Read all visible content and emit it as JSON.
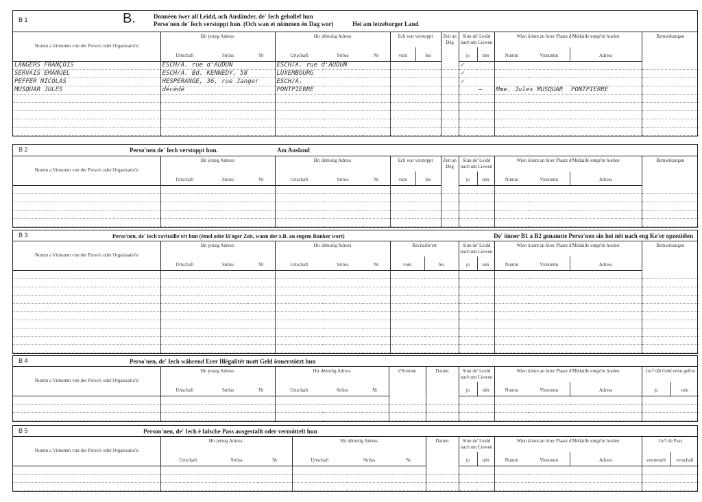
{
  "sections": [
    {
      "id": "B 1",
      "big_letter": "B.",
      "title": "Donnéen iwer all Leidd, och Ausländer, de' Iech gehollef hun",
      "title_line2": "Perso'nen de' Iech verstoppt hun. (Och wan et nömmen én Dag wor)",
      "extra": "Hei am letzeburger Land",
      "groups": [
        {
          "label": "Numm a Virnumm vun der Perso'n oder Organisatio'n"
        },
        {
          "label": "Hir jetzeg Adress:",
          "sub": [
            "Urtschaft",
            "Ströss",
            "Nr"
          ]
        },
        {
          "label": "Hir démolig Adress",
          "sub": [
            "Urtschaft",
            "Ströss",
            "Nr"
          ]
        },
        {
          "label": "Ech war verstoppt",
          "sub": [
            "vum",
            "bis"
          ]
        },
        {
          "label": "Zeit an Dég"
        },
        {
          "label": "Sinn de' Leidd nach um Liewen",
          "sub": [
            "jo",
            "nén"
          ]
        },
        {
          "label": "Wien könnt an hirer Plaatz d'Médaille entgé'nt huelen",
          "sub": [
            "Numm",
            "Virnumm",
            "Adress"
          ]
        },
        {
          "label": "Bemierkungen"
        }
      ],
      "rows": [
        [
          "LANGERS  FRANÇOIS",
          "ESCH/A. rue d'AUDUN",
          "",
          "",
          "ESCH/A. rue d'AUDUN",
          "",
          "",
          "",
          "",
          "",
          "✓",
          "",
          "",
          "",
          "",
          ""
        ],
        [
          "SERVAIS  EMANUEL",
          "ESCH/A.  Bd. KENNEDY, 58",
          "",
          "",
          "LUXEMBOURG",
          "",
          "",
          "",
          "",
          "",
          "✓",
          "",
          "",
          "",
          "",
          ""
        ],
        [
          "PEFFER  NICOLAS",
          "HESPERANGE, 36, rue Janger",
          "",
          "",
          "ESCH/A.",
          "",
          "",
          "",
          "",
          "",
          "✓",
          "",
          "",
          "",
          "",
          ""
        ],
        [
          "MUSQUAR  JULES",
          "décédé",
          "",
          "",
          "PONTPIERRE",
          "",
          "",
          "",
          "",
          "",
          "",
          "—",
          "Mme. Jules MUSQUAR",
          "",
          "PONTPIERRE",
          ""
        ]
      ]
    },
    {
      "id": "B 2",
      "title": "Perso'nen de' Iech verstoppt hun.",
      "extra": "Am Ausland",
      "groups": [
        {
          "label": "Numm a Virnumm vun der Perso'n oder Organisatio'n"
        },
        {
          "label": "Hir jetzeg Adress:",
          "sub": [
            "Urtschaft",
            "Ströss",
            "Nr"
          ]
        },
        {
          "label": "Hir démolig Adress",
          "sub": [
            "Urtschaft",
            "Ströss",
            "Nr"
          ]
        },
        {
          "label": "Ech war verstoppt",
          "sub": [
            "vum",
            "bis"
          ]
        },
        {
          "label": "Zeit an Dég"
        },
        {
          "label": "Sinn de' Leidd nach um Liewen",
          "sub": [
            "jo",
            "nén"
          ]
        },
        {
          "label": "Wien könnt an hirer Plaatz d'Médaille entgé'nt huelen",
          "sub": [
            "Numm",
            "Virnumm",
            "Adress"
          ]
        },
        {
          "label": "Bemierkungen"
        }
      ],
      "rows": []
    },
    {
      "id": "B 3",
      "title": "Perso'nen, de' Iech ravitaille'ert hun (émol oder lä'nger Zeit, wann der z.B. an engem Bunker wort)",
      "extra": "De' önner B1 a B2 genannte Perso'nen sin hei nöt nach eng Ke'er opzeziélen",
      "groups": [
        {
          "label": "Numm a Virnumm vun der Perso'n oder Organisatio'n"
        },
        {
          "label": "Hir jetzeg Adress:",
          "sub": [
            "Urtschaft",
            "Ströss",
            "Nr"
          ]
        },
        {
          "label": "Hir démolig Adress",
          "sub": [
            "Urtschaft",
            "Ströss",
            "Nr"
          ]
        },
        {
          "label": "Ravitaille'ert",
          "sub": [
            "vum",
            "bis"
          ]
        },
        {
          "label": "Sinn de' Leidd nach um Liewen",
          "sub": [
            "jo",
            "nén"
          ]
        },
        {
          "label": "Wien könnt an hirer Plaatz d'Médaille entgé'nt huelen",
          "sub": [
            "Numm",
            "Virnumm",
            "Adress"
          ]
        },
        {
          "label": "Bemierkungen"
        }
      ],
      "rows": []
    },
    {
      "id": "B 4",
      "title": "Perso'nen, de' Iech während Erer Illégalitét matt Geld önnerstötzt hun",
      "extra": "",
      "groups": [
        {
          "label": "Numm a Virnumm vun der Perso'n oder Organisatio'n"
        },
        {
          "label": "Hir jetzeg Adress:",
          "sub": [
            "Urtschaft",
            "Ströss",
            "Nr"
          ]
        },
        {
          "label": "Hir démolig Adress",
          "sub": [
            "Urtschaft",
            "Ströss",
            "Nr"
          ]
        },
        {
          "label": "d'Somme"
        },
        {
          "label": "Datum"
        },
        {
          "label": "Sinn de' Leidd nach um Liewen",
          "sub": [
            "jo",
            "nén"
          ]
        },
        {
          "label": "Wien könnt an hirer Plaatz d'Médaille entgé'nt huelen",
          "sub": [
            "Numm",
            "Virnumm",
            "Adress"
          ]
        },
        {
          "label": "Go'f dât Geld erem gefrot",
          "sub": [
            "jo",
            "nén"
          ]
        }
      ],
      "rows": []
    },
    {
      "id": "B 5",
      "title": "Person'nen, de' Iech é falsche Pass ausgestallt oder vermöttelt hun",
      "extra": "",
      "groups": [
        {
          "label": "Numm a Virnumm vun der Perso'n oder Organisatio'n"
        },
        {
          "label": "Hir jetzeg Adress:",
          "sub": [
            "Urtschaft",
            "Ströss",
            "Nr"
          ]
        },
        {
          "label": "Hir démolig Adress",
          "sub": [
            "Urtschaft",
            "Ströss",
            "Nr"
          ]
        },
        {
          "label": "Datum"
        },
        {
          "label": "Sinn de' Leidd nach um Liewen",
          "sub": [
            "jo",
            "nén"
          ]
        },
        {
          "label": "Wien könnt an hirer Plaatz d'Médaille entgé'nt huelen",
          "sub": [
            "Numm",
            "Virnumm",
            "Adress"
          ]
        },
        {
          "label": "Go'f de Pass",
          "sub": [
            "vermettelt",
            "verschaft"
          ]
        }
      ],
      "rows": []
    }
  ]
}
